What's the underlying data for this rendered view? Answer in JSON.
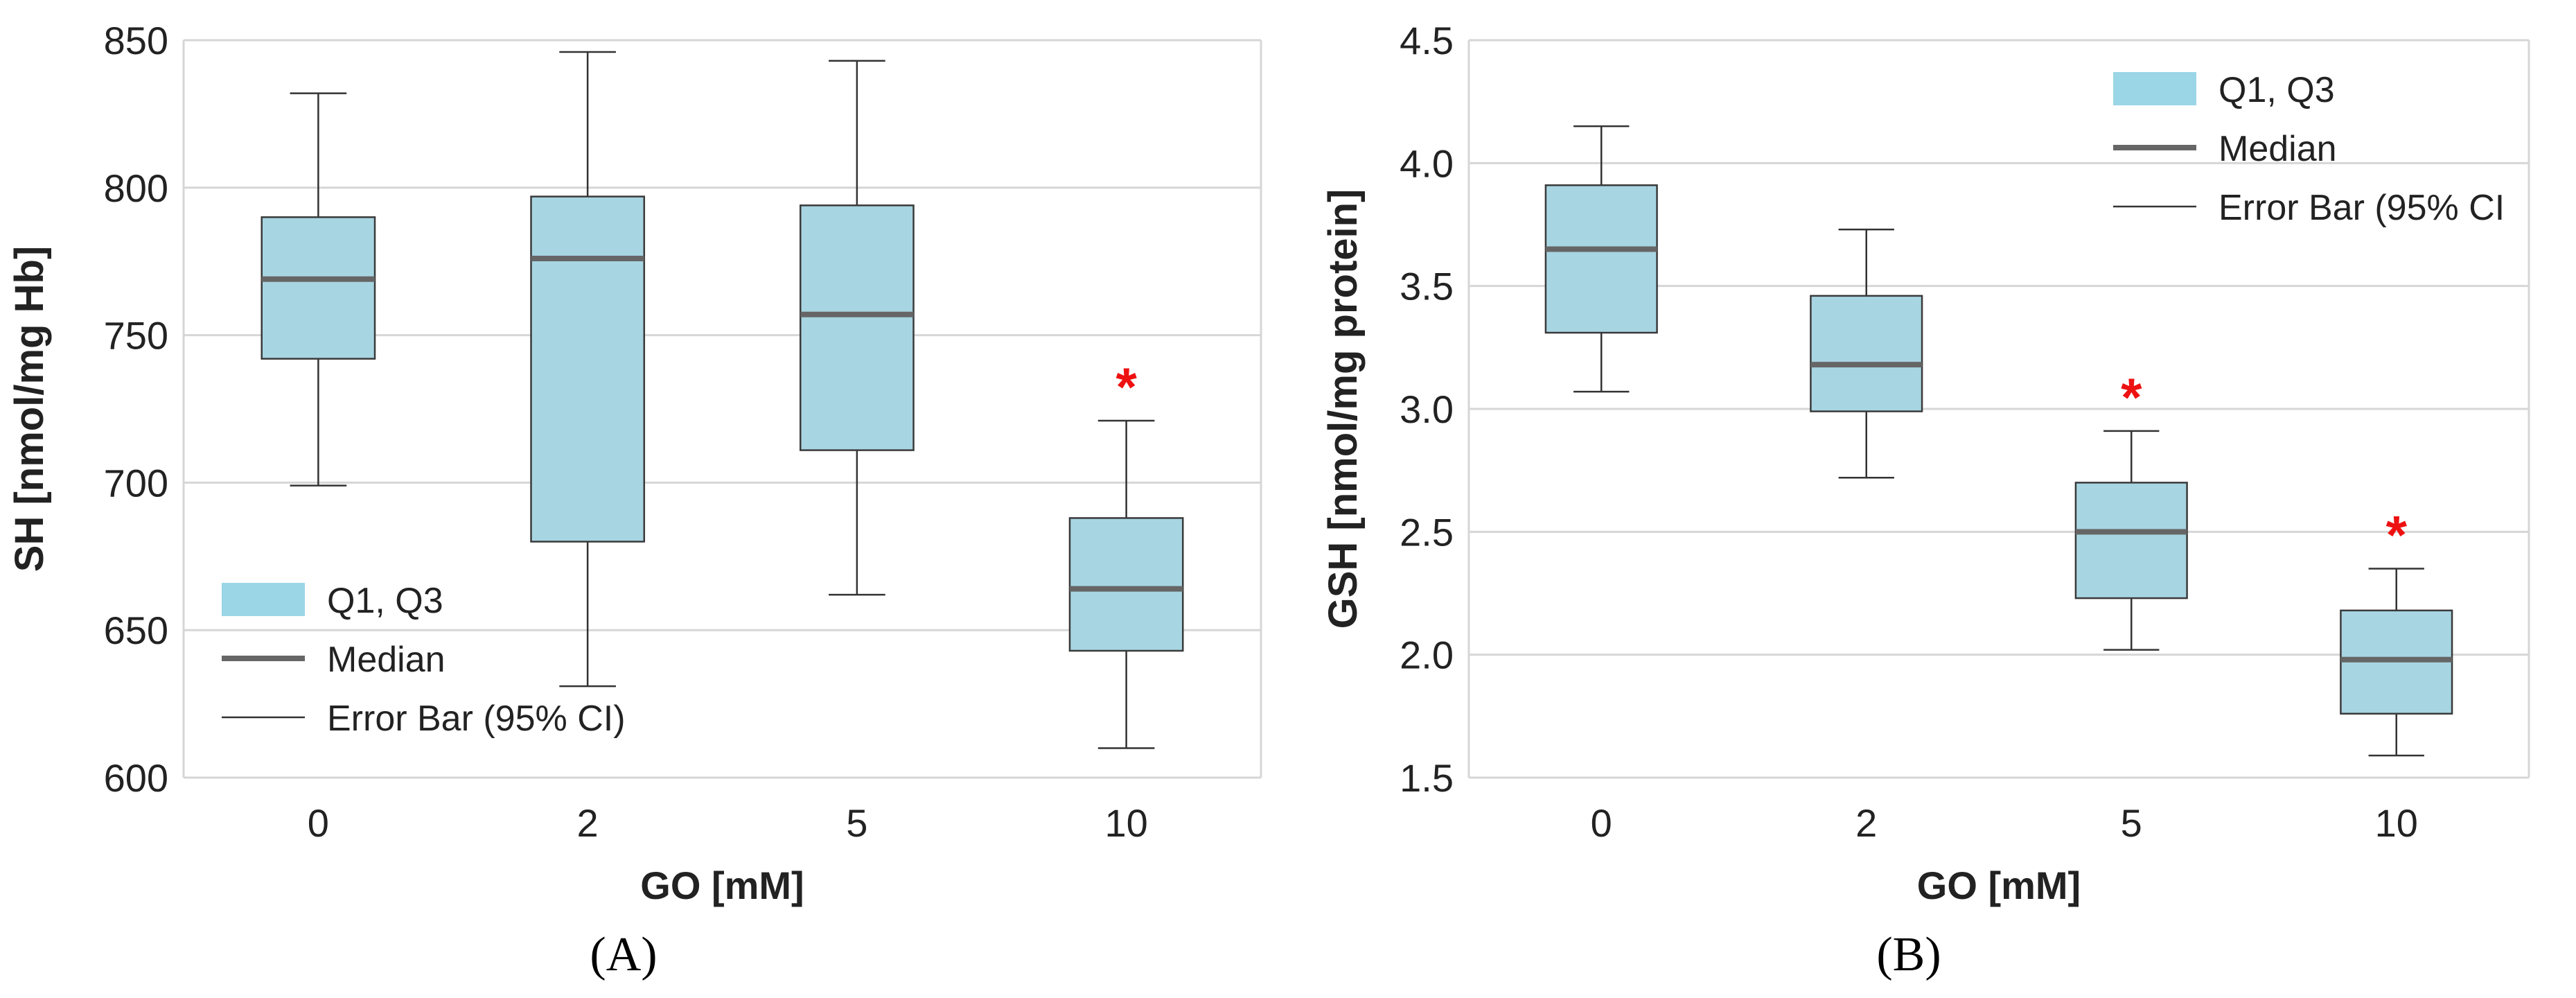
{
  "colors": {
    "box_fill": "#a8d5e2",
    "box_edge": "#3a3a3a",
    "median": "#666666",
    "whisker": "#333333",
    "grid": "#d6d6d6",
    "axis_text": "#222222",
    "legend_patch": "#9ad6e6",
    "significance": "#ee1111"
  },
  "chart_data": [
    {
      "type": "box",
      "panel_label": "(A)",
      "xlabel": "GO [mM]",
      "ylabel": "SH [nmol/mg Hb]",
      "categories": [
        "0",
        "2",
        "5",
        "10"
      ],
      "ylim": [
        600,
        850
      ],
      "yticks": [
        600,
        650,
        700,
        750,
        800,
        850
      ],
      "ytick_labels": [
        "600",
        "650",
        "700",
        "750",
        "800",
        "850"
      ],
      "grid": true,
      "legend_position": "bottom-left",
      "legend": {
        "box": "Q1, Q3",
        "median": "Median",
        "whisker": "Error Bar (95% CI)"
      },
      "boxes": [
        {
          "category": "0",
          "whisker_low": 699,
          "q1": 742,
          "median": 769,
          "q3": 790,
          "whisker_high": 832,
          "significant": false
        },
        {
          "category": "2",
          "whisker_low": 631,
          "q1": 680,
          "median": 776,
          "q3": 797,
          "whisker_high": 846,
          "significant": false
        },
        {
          "category": "5",
          "whisker_low": 662,
          "q1": 711,
          "median": 757,
          "q3": 794,
          "whisker_high": 843,
          "significant": false
        },
        {
          "category": "10",
          "whisker_low": 610,
          "q1": 643,
          "median": 664,
          "q3": 688,
          "whisker_high": 721,
          "significant": true
        }
      ],
      "significance_symbol": "*"
    },
    {
      "type": "box",
      "panel_label": "(B)",
      "xlabel": "GO [mM]",
      "ylabel": "GSH [nmol/mg protein]",
      "categories": [
        "0",
        "2",
        "5",
        "10"
      ],
      "ylim": [
        1.5,
        4.5
      ],
      "yticks": [
        1.5,
        2.0,
        2.5,
        3.0,
        3.5,
        4.0,
        4.5
      ],
      "ytick_labels": [
        "1.5",
        "2.0",
        "2.5",
        "3.0",
        "3.5",
        "4.0",
        "4.5"
      ],
      "grid": true,
      "legend_position": "top-right",
      "legend": {
        "box": "Q1, Q3",
        "median": "Median",
        "whisker": "Error Bar (95% CI"
      },
      "boxes": [
        {
          "category": "0",
          "whisker_low": 3.07,
          "q1": 3.31,
          "median": 3.65,
          "q3": 3.91,
          "whisker_high": 4.15,
          "significant": false
        },
        {
          "category": "2",
          "whisker_low": 2.72,
          "q1": 2.99,
          "median": 3.18,
          "q3": 3.46,
          "whisker_high": 3.73,
          "significant": false
        },
        {
          "category": "5",
          "whisker_low": 2.02,
          "q1": 2.23,
          "median": 2.5,
          "q3": 2.7,
          "whisker_high": 2.91,
          "significant": true
        },
        {
          "category": "10",
          "whisker_low": 1.59,
          "q1": 1.76,
          "median": 1.98,
          "q3": 2.18,
          "whisker_high": 2.35,
          "significant": true
        }
      ],
      "significance_symbol": "*"
    }
  ]
}
